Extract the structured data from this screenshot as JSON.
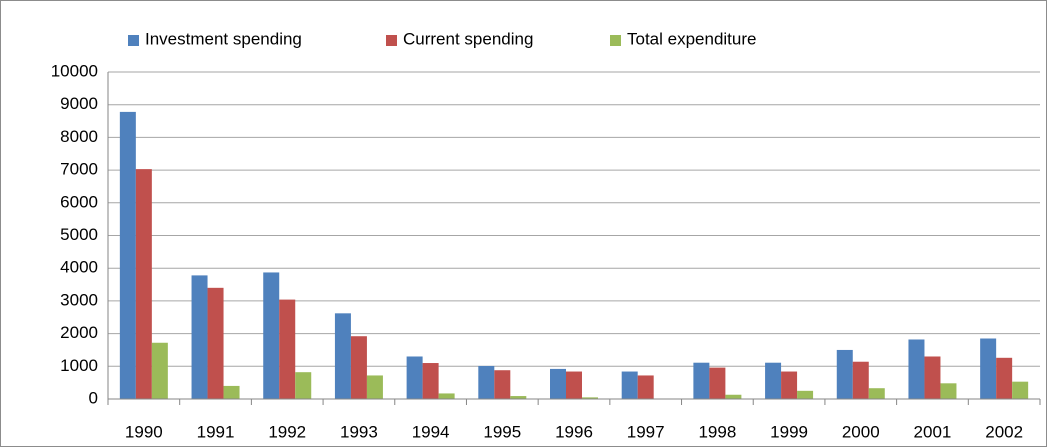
{
  "chart_data": {
    "type": "bar",
    "categories": [
      "1990",
      "1991",
      "1992",
      "1993",
      "1994",
      "1995",
      "1996",
      "1997",
      "1998",
      "1999",
      "2000",
      "2001",
      "2002"
    ],
    "series": [
      {
        "name": "Investment spending",
        "color": "#4f81bd",
        "values": [
          8780,
          3780,
          3870,
          2620,
          1300,
          1010,
          920,
          840,
          1110,
          1110,
          1500,
          1820,
          1850
        ]
      },
      {
        "name": "Current spending",
        "color": "#c0504d",
        "values": [
          7030,
          3400,
          3040,
          1920,
          1100,
          880,
          840,
          720,
          960,
          840,
          1140,
          1300,
          1260
        ]
      },
      {
        "name": "Total expenditure",
        "color": "#9bbb59",
        "values": [
          1720,
          400,
          820,
          720,
          170,
          90,
          50,
          0,
          130,
          250,
          330,
          480,
          530
        ]
      }
    ],
    "ylim": [
      0,
      10000
    ],
    "yticks": [
      0,
      1000,
      2000,
      3000,
      4000,
      5000,
      6000,
      7000,
      8000,
      9000,
      10000
    ],
    "grid": true,
    "legend": "top"
  }
}
